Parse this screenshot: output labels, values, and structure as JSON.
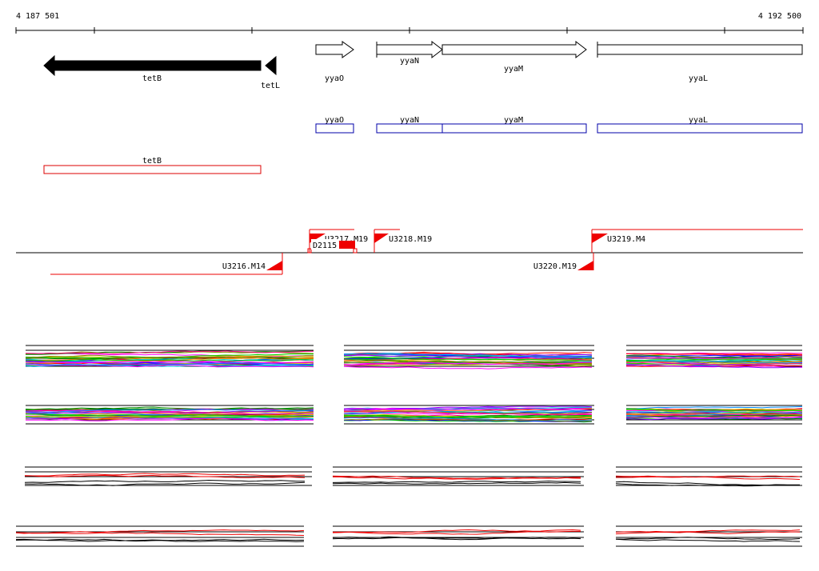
{
  "ruler": {
    "start_label": "4 187 501",
    "end_label": "4 192 500"
  },
  "genes": [
    {
      "name": "tetB",
      "strand": "-",
      "style": "filled"
    },
    {
      "name": "tetL",
      "strand": "-",
      "style": "filled"
    },
    {
      "name": "yyaO",
      "strand": "+",
      "style": "outline"
    },
    {
      "name": "yyaN",
      "strand": "+",
      "style": "outline"
    },
    {
      "name": "yyaM",
      "strand": "+",
      "style": "outline"
    },
    {
      "name": "yyaL",
      "strand": "+",
      "style": "outline"
    }
  ],
  "gene_boxes": [
    {
      "name": "yyaO",
      "color": "#0000aa"
    },
    {
      "name": "yyaN",
      "color": "#0000aa"
    },
    {
      "name": "yyaM",
      "color": "#0000aa"
    },
    {
      "name": "yyaL",
      "color": "#0000aa"
    },
    {
      "name": "tetB",
      "color": "#dd0000"
    }
  ],
  "transcripts": [
    {
      "name": "U3217.M19",
      "strand": "+"
    },
    {
      "name": "U3218.M19",
      "strand": "+"
    },
    {
      "name": "U3219.M4",
      "strand": "+"
    },
    {
      "name": "U3216.M14",
      "strand": "-"
    },
    {
      "name": "U3220.M19",
      "strand": "-"
    }
  ],
  "features": [
    {
      "name": "D2115"
    }
  ],
  "colors": {
    "gene_fill": "#000000",
    "gene_box": "#0000aa",
    "transcript": "#ee0000",
    "axis": "#000000"
  }
}
